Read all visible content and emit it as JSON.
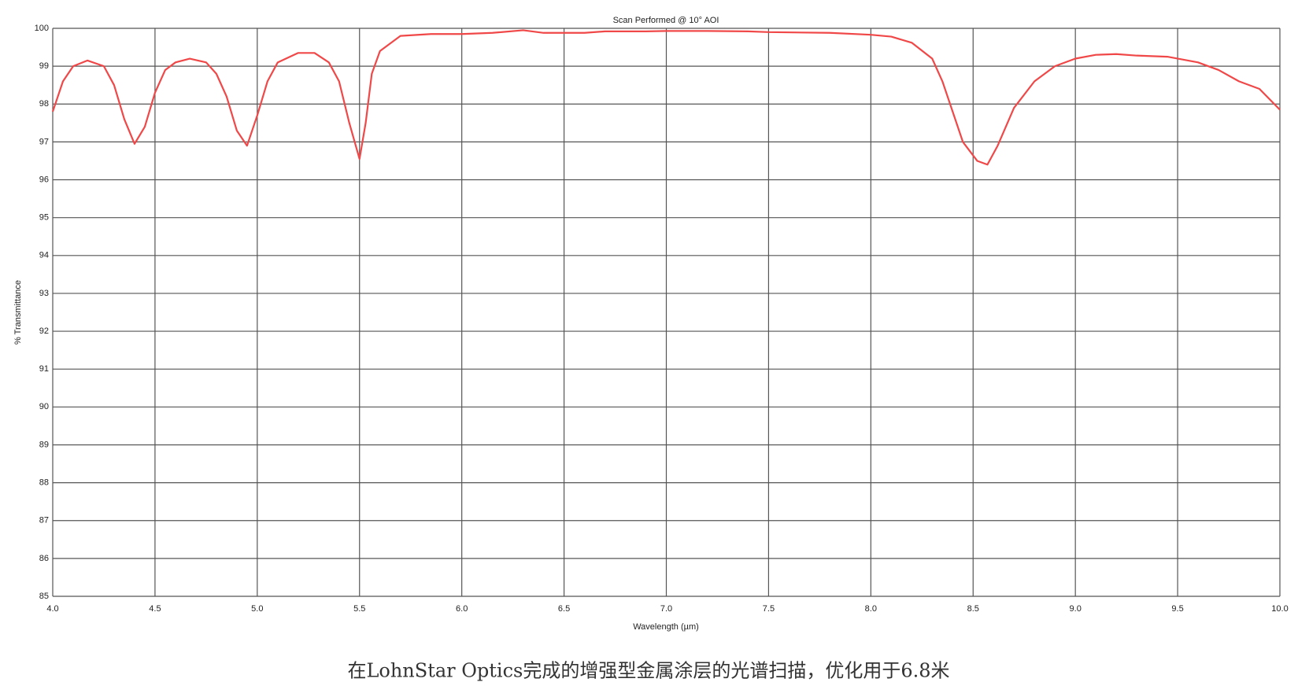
{
  "chart_data": {
    "type": "line",
    "title": "Scan Performed @ 10° AOI",
    "x_label": "Wavelength (µm)",
    "y_label": "% Transmittance",
    "xlim": [
      4,
      10
    ],
    "ylim": [
      85,
      100
    ],
    "xticks": [
      {
        "value": 4,
        "label": "4.0"
      },
      {
        "value": 4.5,
        "label": "4.5"
      },
      {
        "value": 5,
        "label": "5.0"
      },
      {
        "value": 5.5,
        "label": "5.5"
      },
      {
        "value": 6,
        "label": "6.0"
      },
      {
        "value": 6.5,
        "label": "6.5"
      },
      {
        "value": 7,
        "label": "7.0"
      },
      {
        "value": 7.5,
        "label": "7.5"
      },
      {
        "value": 8,
        "label": "8.0"
      },
      {
        "value": 8.5,
        "label": "8.5"
      },
      {
        "value": 9,
        "label": "9.0"
      },
      {
        "value": 9.5,
        "label": "9.5"
      },
      {
        "value": 10,
        "label": "10.0"
      }
    ],
    "yticks": [
      85,
      86,
      87,
      88,
      89,
      90,
      91,
      92,
      93,
      94,
      95,
      96,
      97,
      98,
      99,
      100
    ],
    "grid": true,
    "x": [
      4.0,
      4.05,
      4.1,
      4.17,
      4.25,
      4.3,
      4.35,
      4.4,
      4.45,
      4.5,
      4.55,
      4.6,
      4.67,
      4.75,
      4.8,
      4.85,
      4.9,
      4.95,
      5.0,
      5.05,
      5.1,
      5.2,
      5.28,
      5.35,
      5.4,
      5.45,
      5.5,
      5.53,
      5.56,
      5.6,
      5.7,
      5.85,
      6.0,
      6.15,
      6.3,
      6.4,
      6.5,
      6.6,
      6.7,
      6.9,
      7.0,
      7.2,
      7.4,
      7.5,
      7.8,
      8.0,
      8.1,
      8.2,
      8.3,
      8.35,
      8.4,
      8.45,
      8.52,
      8.57,
      8.62,
      8.7,
      8.8,
      8.9,
      9.0,
      9.1,
      9.2,
      9.3,
      9.45,
      9.6,
      9.7,
      9.8,
      9.9,
      10.0
    ],
    "series": [
      {
        "name": "Transmittance",
        "color": "#f04848",
        "values": [
          97.8,
          98.6,
          99.0,
          99.15,
          99.0,
          98.5,
          97.6,
          96.95,
          97.4,
          98.3,
          98.9,
          99.1,
          99.2,
          99.1,
          98.8,
          98.2,
          97.3,
          96.9,
          97.7,
          98.6,
          99.1,
          99.35,
          99.35,
          99.1,
          98.6,
          97.5,
          96.55,
          97.5,
          98.8,
          99.4,
          99.8,
          99.85,
          99.85,
          99.88,
          99.95,
          99.88,
          99.88,
          99.88,
          99.92,
          99.92,
          99.93,
          99.93,
          99.92,
          99.9,
          99.88,
          99.83,
          99.78,
          99.62,
          99.2,
          98.6,
          97.8,
          97.0,
          96.5,
          96.4,
          96.9,
          97.9,
          98.6,
          99.0,
          99.2,
          99.3,
          99.32,
          99.28,
          99.25,
          99.1,
          98.9,
          98.6,
          98.4,
          97.85
        ]
      }
    ]
  },
  "caption": "在LohnStar Optics完成的增强型金属涂层的光谱扫描，优化用于6.8米"
}
